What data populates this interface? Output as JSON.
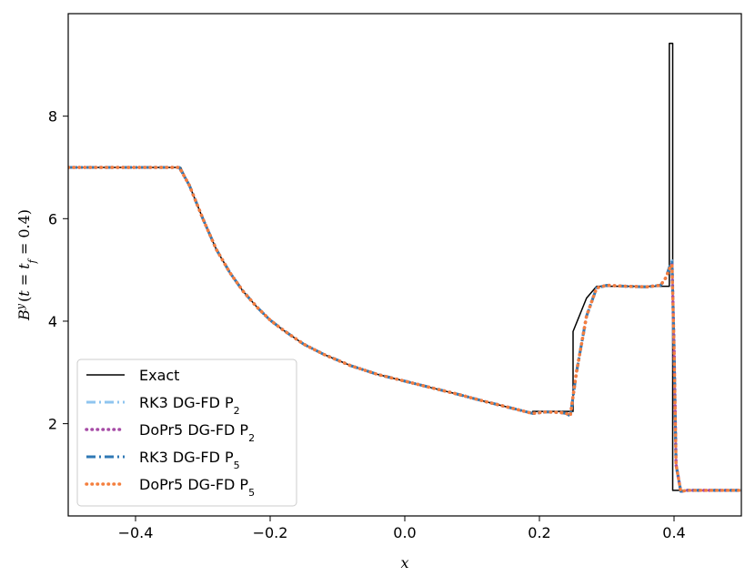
{
  "chart_data": {
    "type": "line",
    "title": "",
    "xlabel": "x",
    "ylabel": "B^y(t = t_f = 0.4)",
    "xlim": [
      -0.5,
      0.5
    ],
    "ylim": [
      0.2,
      10.0
    ],
    "xticks": [
      {
        "value": -0.4,
        "label": "−0.4"
      },
      {
        "value": -0.2,
        "label": "−0.2"
      },
      {
        "value": 0.0,
        "label": "0.0"
      },
      {
        "value": 0.2,
        "label": "0.2"
      },
      {
        "value": 0.4,
        "label": "0.4"
      }
    ],
    "yticks": [
      {
        "value": 2,
        "label": "2"
      },
      {
        "value": 4,
        "label": "4"
      },
      {
        "value": 6,
        "label": "6"
      },
      {
        "value": 8,
        "label": "8"
      }
    ],
    "grid": false,
    "legend_position": "lower-left",
    "series": [
      {
        "name": "Exact",
        "label_main": "Exact",
        "label_sub": "",
        "color": "#000000",
        "style": "solid",
        "x": [
          -0.5,
          -0.333,
          -0.32,
          -0.3,
          -0.28,
          -0.26,
          -0.24,
          -0.22,
          -0.2,
          -0.18,
          -0.15,
          -0.12,
          -0.08,
          -0.04,
          0.0,
          0.04,
          0.08,
          0.12,
          0.16,
          0.19,
          0.19,
          0.25,
          0.25,
          0.27,
          0.285,
          0.385,
          0.393,
          0.393,
          0.398,
          0.398,
          0.5
        ],
        "y": [
          7.0,
          7.0,
          6.65,
          6.0,
          5.4,
          4.95,
          4.58,
          4.28,
          4.02,
          3.82,
          3.55,
          3.35,
          3.13,
          2.96,
          2.83,
          2.7,
          2.57,
          2.43,
          2.3,
          2.21,
          2.24,
          2.24,
          3.8,
          4.45,
          4.68,
          4.68,
          4.68,
          9.42,
          9.42,
          0.7,
          0.7
        ]
      },
      {
        "name": "RK3 DG-FD P2",
        "label_main": "RK3 DG-FD P",
        "label_sub": "2",
        "color": "#8fc5ef",
        "style": "dashdot",
        "x": [
          -0.5,
          -0.335,
          -0.32,
          -0.3,
          -0.28,
          -0.26,
          -0.24,
          -0.22,
          -0.2,
          -0.18,
          -0.15,
          -0.12,
          -0.08,
          -0.04,
          0.0,
          0.04,
          0.08,
          0.12,
          0.16,
          0.19,
          0.21,
          0.23,
          0.24,
          0.246,
          0.255,
          0.27,
          0.285,
          0.3,
          0.33,
          0.36,
          0.38,
          0.388,
          0.393,
          0.397,
          0.4,
          0.403,
          0.41,
          0.42,
          0.5
        ],
        "y": [
          7.0,
          7.0,
          6.65,
          6.0,
          5.4,
          4.95,
          4.58,
          4.28,
          4.02,
          3.82,
          3.55,
          3.35,
          3.13,
          2.96,
          2.83,
          2.7,
          2.57,
          2.43,
          2.3,
          2.2,
          2.23,
          2.22,
          2.2,
          2.15,
          3.0,
          4.1,
          4.65,
          4.7,
          4.68,
          4.67,
          4.7,
          4.85,
          5.05,
          5.18,
          3.5,
          1.2,
          0.68,
          0.7,
          0.7
        ]
      },
      {
        "name": "DoPr5 DG-FD P2",
        "label_main": "DoPr5 DG-FD P",
        "label_sub": "2",
        "color": "#a64ca6",
        "style": "dotted",
        "x": [
          -0.5,
          -0.335,
          -0.32,
          -0.3,
          -0.28,
          -0.26,
          -0.24,
          -0.22,
          -0.2,
          -0.18,
          -0.15,
          -0.12,
          -0.08,
          -0.04,
          0.0,
          0.04,
          0.08,
          0.12,
          0.16,
          0.19,
          0.21,
          0.23,
          0.24,
          0.246,
          0.255,
          0.27,
          0.285,
          0.3,
          0.33,
          0.36,
          0.38,
          0.388,
          0.393,
          0.397,
          0.4,
          0.403,
          0.41,
          0.42,
          0.5
        ],
        "y": [
          7.0,
          7.0,
          6.65,
          6.0,
          5.4,
          4.95,
          4.58,
          4.28,
          4.02,
          3.82,
          3.55,
          3.35,
          3.13,
          2.96,
          2.83,
          2.7,
          2.57,
          2.43,
          2.3,
          2.2,
          2.23,
          2.22,
          2.2,
          2.16,
          3.0,
          4.1,
          4.65,
          4.7,
          4.68,
          4.67,
          4.7,
          4.85,
          5.03,
          5.12,
          3.5,
          1.2,
          0.68,
          0.7,
          0.7
        ]
      },
      {
        "name": "RK3 DG-FD P5",
        "label_main": "RK3 DG-FD P",
        "label_sub": "5",
        "color": "#2f78b5",
        "style": "dashdot",
        "x": [
          -0.5,
          -0.335,
          -0.32,
          -0.3,
          -0.28,
          -0.26,
          -0.24,
          -0.22,
          -0.2,
          -0.18,
          -0.15,
          -0.12,
          -0.08,
          -0.04,
          0.0,
          0.04,
          0.08,
          0.12,
          0.16,
          0.19,
          0.21,
          0.23,
          0.24,
          0.246,
          0.255,
          0.27,
          0.285,
          0.3,
          0.33,
          0.36,
          0.38,
          0.388,
          0.393,
          0.397,
          0.4,
          0.403,
          0.41,
          0.42,
          0.5
        ],
        "y": [
          7.0,
          7.0,
          6.65,
          6.0,
          5.4,
          4.95,
          4.58,
          4.28,
          4.02,
          3.82,
          3.55,
          3.35,
          3.13,
          2.96,
          2.83,
          2.7,
          2.57,
          2.43,
          2.3,
          2.2,
          2.23,
          2.22,
          2.2,
          2.15,
          3.0,
          4.1,
          4.65,
          4.7,
          4.68,
          4.67,
          4.7,
          4.85,
          5.05,
          5.15,
          3.5,
          1.2,
          0.68,
          0.7,
          0.7
        ]
      },
      {
        "name": "DoPr5 DG-FD P5",
        "label_main": "DoPr5 DG-FD P",
        "label_sub": "5",
        "color": "#f47f3e",
        "style": "dotted",
        "x": [
          -0.5,
          -0.335,
          -0.32,
          -0.3,
          -0.28,
          -0.26,
          -0.24,
          -0.22,
          -0.2,
          -0.18,
          -0.15,
          -0.12,
          -0.08,
          -0.04,
          0.0,
          0.04,
          0.08,
          0.12,
          0.16,
          0.19,
          0.21,
          0.23,
          0.24,
          0.246,
          0.255,
          0.27,
          0.285,
          0.3,
          0.33,
          0.36,
          0.38,
          0.388,
          0.393,
          0.397,
          0.4,
          0.403,
          0.41,
          0.42,
          0.5
        ],
        "y": [
          7.0,
          7.0,
          6.65,
          6.0,
          5.4,
          4.95,
          4.58,
          4.28,
          4.02,
          3.82,
          3.55,
          3.35,
          3.13,
          2.96,
          2.83,
          2.7,
          2.57,
          2.43,
          2.3,
          2.2,
          2.23,
          2.22,
          2.2,
          2.16,
          3.0,
          4.1,
          4.65,
          4.7,
          4.68,
          4.67,
          4.7,
          4.85,
          5.02,
          5.1,
          3.5,
          1.2,
          0.68,
          0.7,
          0.7
        ]
      }
    ]
  }
}
